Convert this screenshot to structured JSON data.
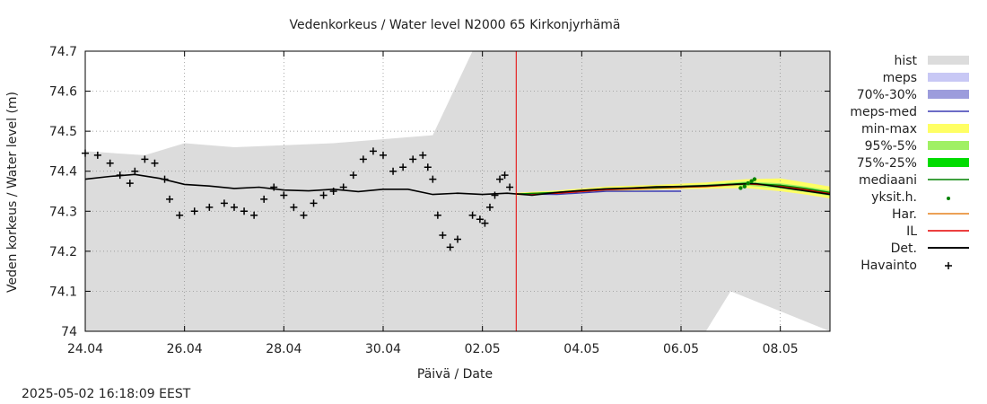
{
  "chart_data": {
    "type": "line",
    "title": "Vedenkorkeus / Water level   N2000 65 Kirkonjyrhämä",
    "xlabel": "Päivä / Date",
    "ylabel": "Veden korkeus / Water level (m)",
    "ylim": [
      74.0,
      74.7
    ],
    "xlim": [
      0,
      15
    ],
    "x_unit": "days since 24.04 00:00",
    "y_ticks": [
      "74",
      "74.1",
      "74.2",
      "74.3",
      "74.4",
      "74.5",
      "74.6",
      "74.7"
    ],
    "x_ticks": [
      {
        "x": 0,
        "label": "24.04"
      },
      {
        "x": 2,
        "label": "26.04"
      },
      {
        "x": 4,
        "label": "28.04"
      },
      {
        "x": 6,
        "label": "30.04"
      },
      {
        "x": 8,
        "label": "02.05"
      },
      {
        "x": 10,
        "label": "04.05"
      },
      {
        "x": 12,
        "label": "06.05"
      },
      {
        "x": 14,
        "label": "08.05"
      }
    ],
    "grid": true,
    "forecast_start_x": 8.68,
    "timestamp": "2025-05-02 16:18:09 EEST",
    "legend_placement": "right",
    "legend": [
      {
        "label": "hist",
        "kind": "box",
        "color": "#dcdcdc"
      },
      {
        "label": "meps",
        "kind": "box",
        "color": "#c8c8f5"
      },
      {
        "label": "70%-30%",
        "kind": "box",
        "color": "#9c9cdc"
      },
      {
        "label": "meps-med",
        "kind": "line",
        "color": "#3c3cb4"
      },
      {
        "label": "min-max",
        "kind": "box",
        "color": "#ffff64"
      },
      {
        "label": "95%-5%",
        "kind": "box",
        "color": "#a0f064"
      },
      {
        "label": "75%-25%",
        "kind": "box",
        "color": "#00dc00"
      },
      {
        "label": "mediaani",
        "kind": "line",
        "color": "#008200"
      },
      {
        "label": "yksit.h.",
        "kind": "dot",
        "color": "#008200"
      },
      {
        "label": "Har.",
        "kind": "line",
        "color": "#e6821e"
      },
      {
        "label": "IL",
        "kind": "line",
        "color": "#e60000"
      },
      {
        "label": "Det.",
        "kind": "line",
        "color": "#000000"
      },
      {
        "label": "Havainto",
        "kind": "plus",
        "color": "#000000"
      }
    ],
    "series": [
      {
        "name": "hist",
        "kind": "band",
        "color": "#dcdcdc",
        "x": [
          0,
          1.2,
          2.0,
          3.0,
          5.0,
          7.0,
          7.8,
          8.1,
          15.0
        ],
        "upper": [
          74.45,
          74.44,
          74.47,
          74.46,
          74.47,
          74.49,
          74.7,
          74.7,
          74.7
        ],
        "lower": [
          74.0,
          74.0,
          74.0,
          74.0,
          74.0,
          74.0,
          74.0,
          74.0,
          74.0
        ],
        "upper_tail": {
          "x": [
            12.5,
            13.0,
            15.0
          ],
          "y": [
            74.0,
            74.1,
            74.0
          ]
        }
      },
      {
        "name": "min-max",
        "kind": "band",
        "color": "#ffff64",
        "x": [
          8.68,
          9.5,
          10.5,
          11.5,
          12.5,
          13.3,
          14.0,
          14.5,
          15.0
        ],
        "upper": [
          74.346,
          74.352,
          74.362,
          74.366,
          74.372,
          74.38,
          74.382,
          74.372,
          74.362
        ],
        "lower": [
          74.34,
          74.342,
          74.35,
          74.354,
          74.356,
          74.358,
          74.35,
          74.342,
          74.332
        ]
      },
      {
        "name": "95%-5%",
        "kind": "band",
        "color": "#a0f064",
        "x": [
          8.68,
          9.5,
          10.5,
          11.5,
          12.5,
          13.3,
          14.0,
          14.5,
          15.0
        ],
        "upper": [
          74.344,
          74.349,
          74.358,
          74.362,
          74.367,
          74.374,
          74.37,
          74.362,
          74.352
        ],
        "lower": [
          74.341,
          74.344,
          74.352,
          74.357,
          74.36,
          74.364,
          74.357,
          74.348,
          74.338
        ]
      },
      {
        "name": "meps-med",
        "kind": "line",
        "color": "#3c3cb4",
        "x": [
          8.68,
          9.5,
          10.5,
          11.0,
          12.0
        ],
        "y": [
          74.343,
          74.342,
          74.35,
          74.35,
          74.35
        ]
      },
      {
        "name": "Har.",
        "kind": "line",
        "color": "#e6821e",
        "x": [
          8.68,
          9.5,
          10.5,
          11.5,
          12.5,
          13.3,
          14.0,
          14.5,
          15.0
        ],
        "y": [
          74.343,
          74.346,
          74.355,
          74.358,
          74.362,
          74.368,
          74.364,
          74.356,
          74.346
        ]
      },
      {
        "name": "IL",
        "kind": "line",
        "color": "#e60000",
        "x": [
          8.68,
          9.5,
          10.5,
          11.5,
          12.5,
          13.3,
          14.0,
          14.5,
          15.0
        ],
        "y": [
          74.343,
          74.345,
          74.354,
          74.358,
          74.362,
          74.369,
          74.363,
          74.354,
          74.344
        ]
      },
      {
        "name": "mediaani",
        "kind": "line",
        "color": "#008200",
        "x": [
          8.68,
          9.5,
          10.5,
          11.5,
          12.5,
          13.3,
          14.0,
          14.5,
          15.0
        ],
        "y": [
          74.343,
          74.347,
          74.356,
          74.359,
          74.363,
          74.37,
          74.365,
          74.357,
          74.347
        ]
      },
      {
        "name": "yksit.h.",
        "kind": "points",
        "color": "#008200",
        "x": [
          13.2,
          13.28,
          13.35,
          13.42,
          13.48
        ],
        "y": [
          74.358,
          74.362,
          74.37,
          74.375,
          74.38
        ]
      },
      {
        "name": "Det.",
        "kind": "line",
        "color": "#000000",
        "x": [
          0,
          0.5,
          1.0,
          1.5,
          2.0,
          2.5,
          3.0,
          3.5,
          4.0,
          4.5,
          5.0,
          5.5,
          6.0,
          6.5,
          7.0,
          7.5,
          8.0,
          8.5,
          9.0,
          9.5,
          10.0,
          10.5,
          11.0,
          11.5,
          12.0,
          12.5,
          13.0,
          13.5,
          14.0,
          14.5,
          15.0
        ],
        "y": [
          74.38,
          74.387,
          74.392,
          74.382,
          74.367,
          74.363,
          74.357,
          74.36,
          74.353,
          74.351,
          74.355,
          74.349,
          74.355,
          74.355,
          74.342,
          74.345,
          74.342,
          74.345,
          74.34,
          74.347,
          74.352,
          74.356,
          74.358,
          74.361,
          74.362,
          74.364,
          74.367,
          74.369,
          74.36,
          74.351,
          74.342
        ]
      },
      {
        "name": "Havainto",
        "kind": "points",
        "color": "#000000",
        "x": [
          0,
          0.25,
          0.5,
          0.7,
          0.9,
          1.0,
          1.2,
          1.4,
          1.6,
          1.7,
          1.9,
          2.2,
          2.5,
          2.8,
          3.0,
          3.2,
          3.4,
          3.6,
          3.8,
          4.0,
          4.2,
          4.4,
          4.6,
          4.8,
          5.0,
          5.2,
          5.4,
          5.6,
          5.8,
          6.0,
          6.2,
          6.4,
          6.6,
          6.8,
          6.9,
          7.0,
          7.1,
          7.2,
          7.35,
          7.5,
          7.8,
          7.95,
          8.05,
          8.15,
          8.25,
          8.35,
          8.45,
          8.55
        ],
        "y": [
          74.445,
          74.44,
          74.42,
          74.39,
          74.37,
          74.4,
          74.43,
          74.42,
          74.38,
          74.33,
          74.29,
          74.3,
          74.31,
          74.32,
          74.31,
          74.3,
          74.29,
          74.33,
          74.36,
          74.34,
          74.31,
          74.29,
          74.32,
          74.34,
          74.35,
          74.36,
          74.39,
          74.43,
          74.45,
          74.44,
          74.4,
          74.41,
          74.43,
          74.44,
          74.41,
          74.38,
          74.29,
          74.24,
          74.21,
          74.23,
          74.29,
          74.28,
          74.27,
          74.31,
          74.34,
          74.38,
          74.39,
          74.36
        ]
      }
    ]
  }
}
